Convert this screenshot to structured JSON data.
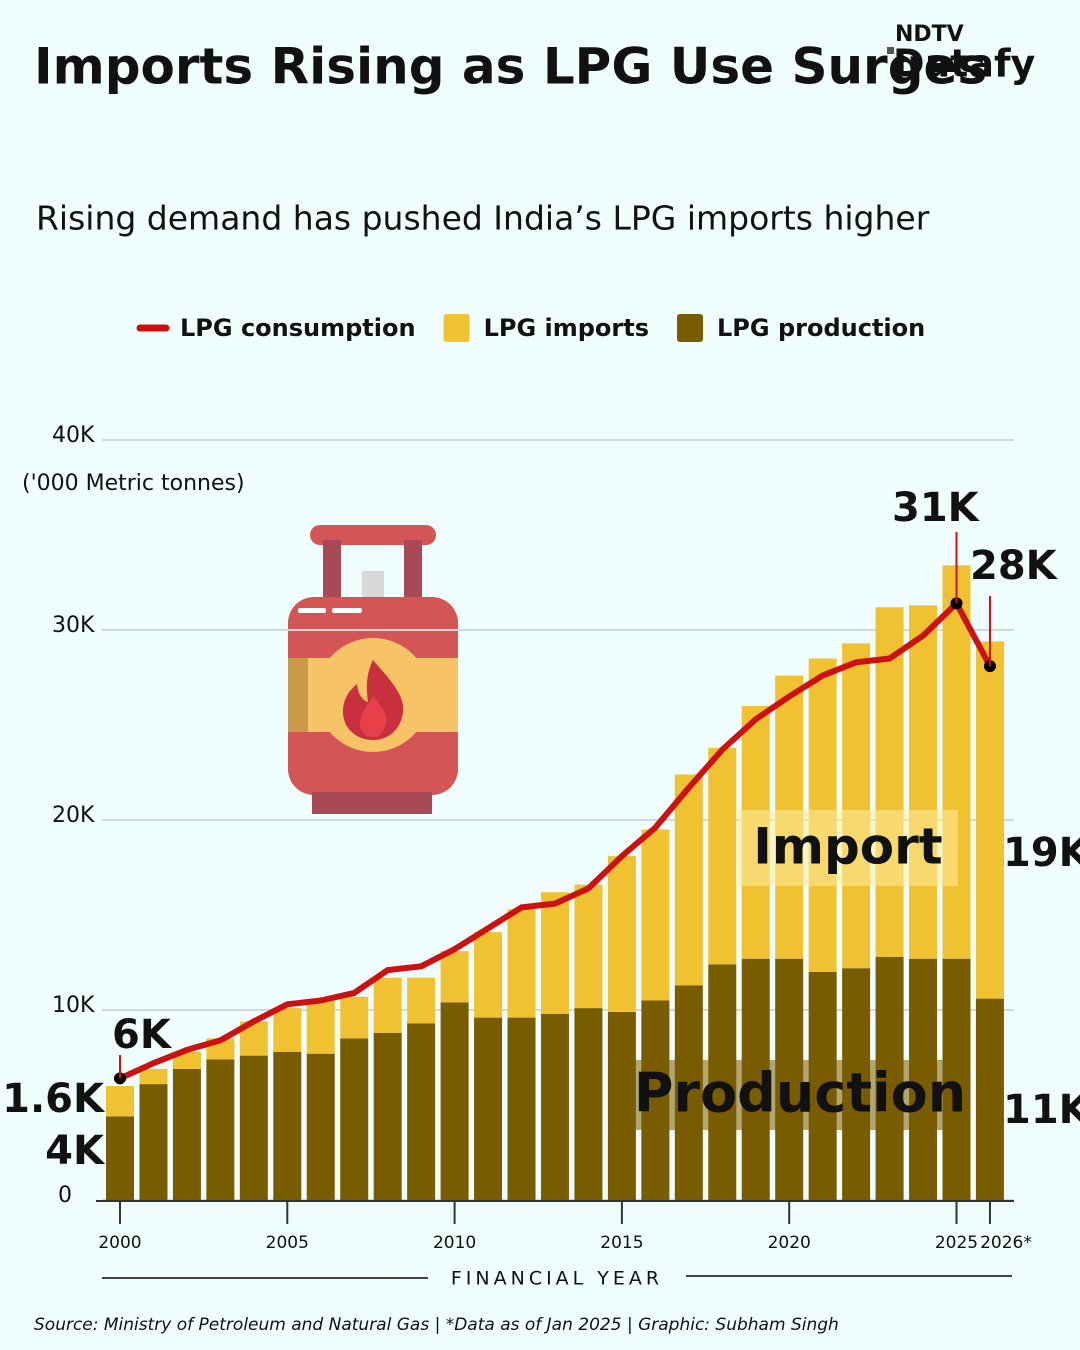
{
  "chart_data": {
    "type": "stacked-bar-line",
    "title": "Imports Rising as LPG Use Surges",
    "subtitle": "Rising demand has pushed India’s LPG imports higher",
    "brand": {
      "top": "NDTV",
      "bottom": "Datafy"
    },
    "y_label": "('000 Metric tonnes)",
    "x_label": "FINANCIAL YEAR",
    "source": "Source: Ministry of Petroleum and Natural Gas | *Data as of Jan 2025 | Graphic: Subham Singh",
    "annotations": [
      "Import",
      "Production"
    ],
    "categories": [
      "2000",
      null,
      null,
      null,
      null,
      "2005",
      null,
      null,
      null,
      null,
      "2010",
      null,
      null,
      null,
      null,
      "2015",
      null,
      null,
      null,
      null,
      "2020",
      null,
      null,
      null,
      null,
      "2025",
      "2026*"
    ],
    "series": [
      {
        "name": "LPG consumption",
        "type": "line",
        "color": "#cc1111",
        "values": [
          6400,
          7200,
          7900,
          8400,
          9400,
          10300,
          10500,
          10900,
          12100,
          12300,
          13200,
          14300,
          15400,
          15600,
          16400,
          18100,
          19600,
          21700,
          23700,
          25300,
          26500,
          27600,
          28300,
          28500,
          29700,
          31400,
          28100
        ],
        "value_labels": [
          "6K",
          null,
          null,
          null,
          null,
          null,
          null,
          null,
          null,
          null,
          null,
          null,
          null,
          null,
          null,
          null,
          null,
          null,
          null,
          null,
          null,
          null,
          null,
          null,
          null,
          "31K",
          "28K"
        ]
      },
      {
        "name": "LPG imports",
        "type": "bar",
        "color": "#f0c232",
        "values": [
          1600,
          800,
          900,
          1100,
          1800,
          2300,
          2800,
          2200,
          2900,
          2400,
          2700,
          4500,
          5700,
          6400,
          6500,
          8200,
          9000,
          11100,
          11400,
          13300,
          14900,
          16500,
          17100,
          18400,
          18600,
          20700,
          18800
        ],
        "value_labels": [
          "1.6K",
          null,
          null,
          null,
          null,
          null,
          null,
          null,
          null,
          null,
          null,
          null,
          null,
          null,
          null,
          null,
          null,
          null,
          null,
          null,
          null,
          null,
          null,
          null,
          null,
          null,
          "19K"
        ]
      },
      {
        "name": "LPG production",
        "type": "bar",
        "color": "#7a5c00",
        "values": [
          4400,
          6100,
          6900,
          7400,
          7600,
          7800,
          7700,
          8500,
          8800,
          9300,
          10400,
          9600,
          9600,
          9800,
          10100,
          9900,
          10500,
          11300,
          12400,
          12700,
          12700,
          12000,
          12200,
          12800,
          12700,
          12700,
          10600
        ],
        "value_labels": [
          "4K",
          null,
          null,
          null,
          null,
          null,
          null,
          null,
          null,
          null,
          null,
          null,
          null,
          null,
          null,
          null,
          null,
          null,
          null,
          null,
          null,
          null,
          null,
          null,
          null,
          null,
          "11K"
        ]
      }
    ],
    "ylim": [
      0,
      40000
    ],
    "yticks": [
      0,
      {
        "value": 10000,
        "label": "10K"
      },
      {
        "value": 20000,
        "label": "20K"
      },
      {
        "value": 30000,
        "label": "30K"
      },
      {
        "value": 40000,
        "label": "40K"
      }
    ],
    "grid": true,
    "legend": "top"
  }
}
